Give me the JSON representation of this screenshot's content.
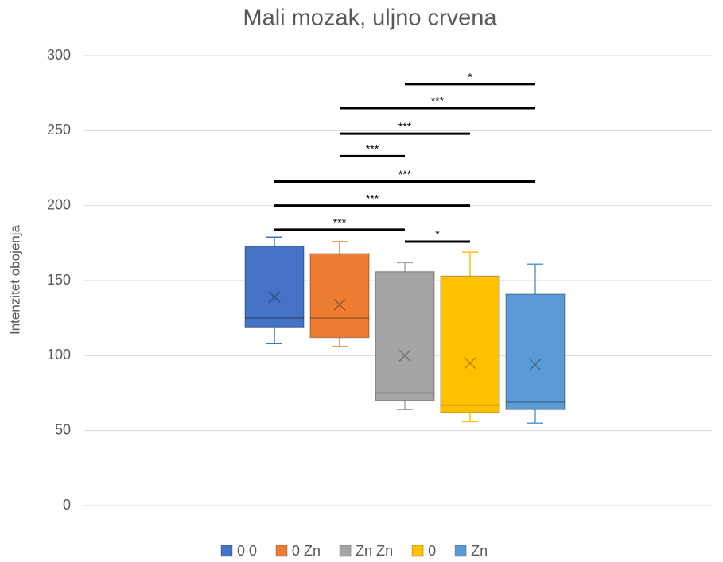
{
  "chart_data": {
    "type": "box",
    "title": "Mali mozak, uljno crvena",
    "y_label": "Intenzitet obojenja",
    "ylim": [
      0,
      300
    ],
    "yticks": [
      0,
      50,
      100,
      150,
      200,
      250,
      300
    ],
    "grid": true,
    "legend": "bottom",
    "series": [
      {
        "name": "0 0",
        "color": "#4472c4",
        "min": 108,
        "q1": 119,
        "median": 125,
        "q3": 173,
        "max": 179,
        "mean": 139
      },
      {
        "name": "0 Zn",
        "color": "#ed7d31",
        "min": 106,
        "q1": 112,
        "median": 125,
        "q3": 168,
        "max": 176,
        "mean": 134
      },
      {
        "name": "Zn Zn",
        "color": "#a5a5a5",
        "min": 64,
        "q1": 70,
        "median": 75,
        "q3": 156,
        "max": 162,
        "mean": 100
      },
      {
        "name": "0",
        "color": "#ffc000",
        "min": 56,
        "q1": 62,
        "median": 67,
        "q3": 153,
        "max": 169,
        "mean": 95
      },
      {
        "name": "Zn",
        "color": "#5b9bd5",
        "min": 55,
        "q1": 64,
        "median": 69,
        "q3": 141,
        "max": 161,
        "mean": 94
      }
    ],
    "annotations": [
      {
        "label": "*",
        "from": "Zn Zn",
        "to": "Zn",
        "y": 281
      },
      {
        "label": "***",
        "from": "0 Zn",
        "to": "Zn",
        "y": 265
      },
      {
        "label": "***",
        "from": "0 Zn",
        "to": "0",
        "y": 248
      },
      {
        "label": "***",
        "from": "0 Zn",
        "to": "Zn Zn",
        "y": 233
      },
      {
        "label": "***",
        "from": "0 0",
        "to": "Zn",
        "y": 216
      },
      {
        "label": "***",
        "from": "0 0",
        "to": "0",
        "y": 200
      },
      {
        "label": "***",
        "from": "0 0",
        "to": "Zn Zn",
        "y": 184
      },
      {
        "label": "*",
        "from": "Zn Zn",
        "to": "0",
        "y": 176
      }
    ]
  }
}
